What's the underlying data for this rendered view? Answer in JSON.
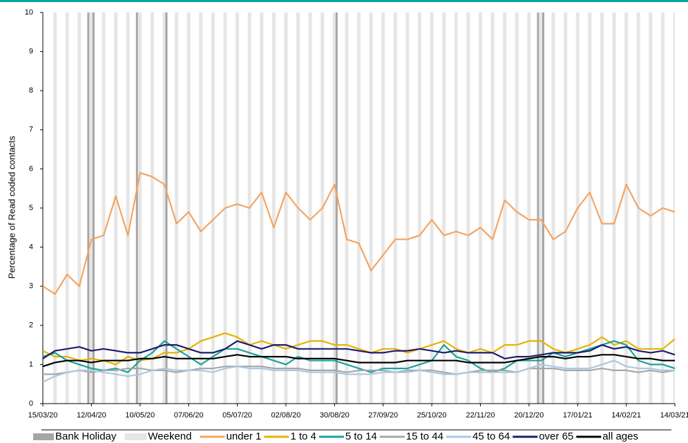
{
  "chart_data": {
    "type": "line",
    "y_label": "Percentage of Read coded contacts",
    "x": [
      "2020-03-15",
      "2020-03-22",
      "2020-03-29",
      "2020-04-05",
      "2020-04-12",
      "2020-04-19",
      "2020-04-26",
      "2020-05-03",
      "2020-05-10",
      "2020-05-17",
      "2020-05-24",
      "2020-05-31",
      "2020-06-07",
      "2020-06-14",
      "2020-06-21",
      "2020-06-28",
      "2020-07-05",
      "2020-07-12",
      "2020-07-19",
      "2020-07-26",
      "2020-08-02",
      "2020-08-09",
      "2020-08-16",
      "2020-08-23",
      "2020-08-30",
      "2020-09-06",
      "2020-09-13",
      "2020-09-20",
      "2020-09-27",
      "2020-10-04",
      "2020-10-11",
      "2020-10-18",
      "2020-10-25",
      "2020-11-01",
      "2020-11-08",
      "2020-11-15",
      "2020-11-22",
      "2020-11-29",
      "2020-12-06",
      "2020-12-13",
      "2020-12-20",
      "2020-12-27",
      "2021-01-03",
      "2021-01-10",
      "2021-01-17",
      "2021-01-24",
      "2021-01-31",
      "2021-02-07",
      "2021-02-14",
      "2021-02-21",
      "2021-02-28",
      "2021-03-07",
      "2021-03-14"
    ],
    "xlim": [
      "2020-03-15",
      "2021-03-14"
    ],
    "xticks": [
      {
        "value": "2020-03-15",
        "label": "15/03/20"
      },
      {
        "value": "2020-04-12",
        "label": "12/04/20"
      },
      {
        "value": "2020-05-10",
        "label": "10/05/20"
      },
      {
        "value": "2020-06-07",
        "label": "07/06/20"
      },
      {
        "value": "2020-07-05",
        "label": "05/07/20"
      },
      {
        "value": "2020-08-02",
        "label": "02/08/20"
      },
      {
        "value": "2020-08-30",
        "label": "30/08/20"
      },
      {
        "value": "2020-09-27",
        "label": "27/09/20"
      },
      {
        "value": "2020-10-25",
        "label": "25/10/20"
      },
      {
        "value": "2020-11-22",
        "label": "22/11/20"
      },
      {
        "value": "2020-12-20",
        "label": "20/12/20"
      },
      {
        "value": "2021-01-17",
        "label": "17/01/21"
      },
      {
        "value": "2021-02-14",
        "label": "14/02/21"
      },
      {
        "value": "2021-03-14",
        "label": "14/03/21"
      }
    ],
    "ylim": [
      0,
      10
    ],
    "yticks": [
      0,
      1,
      2,
      3,
      4,
      5,
      6,
      7,
      8,
      9,
      10
    ],
    "bank_holidays": {
      "name": "Bank Holiday",
      "color": "#a6a6a6",
      "dates": [
        "2020-04-10",
        "2020-04-13",
        "2020-05-08",
        "2020-05-25",
        "2020-08-31",
        "2020-12-25",
        "2020-12-28"
      ]
    },
    "weekends": {
      "name": "Weekend",
      "color": "#e6e6e6"
    },
    "series": [
      {
        "name": "under 1",
        "color": "#f5a35f",
        "values": [
          3.0,
          2.8,
          3.3,
          3.0,
          4.2,
          4.3,
          5.3,
          4.3,
          5.9,
          5.8,
          5.6,
          4.6,
          4.9,
          4.4,
          4.7,
          5.0,
          5.1,
          5.0,
          5.4,
          4.5,
          5.4,
          5.0,
          4.7,
          5.0,
          5.6,
          4.2,
          4.1,
          3.4,
          3.8,
          4.2,
          4.2,
          4.3,
          4.7,
          4.3,
          4.4,
          4.3,
          4.5,
          4.2,
          5.2,
          4.9,
          4.7,
          4.7,
          4.2,
          4.4,
          5.0,
          5.4,
          4.6,
          4.6,
          5.6,
          5.0,
          4.8,
          5.0,
          4.9
        ]
      },
      {
        "name": "1 to 4",
        "color": "#e8b100",
        "values": [
          1.35,
          1.2,
          1.2,
          1.1,
          1.15,
          1.1,
          1.0,
          1.2,
          1.1,
          1.15,
          1.3,
          1.3,
          1.4,
          1.6,
          1.7,
          1.8,
          1.7,
          1.5,
          1.6,
          1.5,
          1.4,
          1.5,
          1.6,
          1.6,
          1.5,
          1.5,
          1.4,
          1.3,
          1.4,
          1.4,
          1.3,
          1.4,
          1.5,
          1.6,
          1.4,
          1.3,
          1.4,
          1.3,
          1.5,
          1.5,
          1.6,
          1.6,
          1.4,
          1.3,
          1.4,
          1.5,
          1.7,
          1.5,
          1.6,
          1.4,
          1.4,
          1.4,
          1.65
        ]
      },
      {
        "name": "5 to 14",
        "color": "#17a39b",
        "values": [
          1.2,
          1.3,
          1.1,
          1.0,
          0.9,
          0.85,
          0.9,
          0.8,
          1.1,
          1.3,
          1.6,
          1.4,
          1.2,
          1.0,
          1.2,
          1.4,
          1.4,
          1.3,
          1.2,
          1.1,
          1.0,
          1.2,
          1.1,
          1.1,
          1.1,
          1.0,
          0.9,
          0.8,
          0.9,
          0.9,
          0.9,
          1.0,
          1.1,
          1.5,
          1.2,
          1.1,
          0.9,
          0.8,
          0.9,
          1.1,
          1.1,
          1.1,
          1.3,
          1.2,
          1.3,
          1.4,
          1.5,
          1.6,
          1.5,
          1.1,
          1.0,
          1.0,
          0.9
        ]
      },
      {
        "name": "15 to 44",
        "color": "#a6a6a6",
        "values": [
          0.75,
          0.75,
          0.8,
          0.85,
          0.8,
          0.85,
          0.85,
          0.9,
          0.9,
          0.85,
          0.85,
          0.8,
          0.85,
          0.9,
          0.9,
          0.95,
          0.95,
          0.95,
          0.95,
          0.9,
          0.9,
          0.9,
          0.85,
          0.85,
          0.85,
          0.8,
          0.85,
          0.85,
          0.85,
          0.8,
          0.85,
          0.85,
          0.85,
          0.8,
          0.75,
          0.8,
          0.85,
          0.85,
          0.85,
          0.8,
          0.9,
          0.9,
          0.9,
          0.85,
          0.85,
          0.85,
          0.9,
          0.85,
          0.85,
          0.8,
          0.85,
          0.8,
          0.85
        ]
      },
      {
        "name": "45 to 64",
        "color": "#a9c8e3",
        "values": [
          0.55,
          0.7,
          0.8,
          0.85,
          0.85,
          0.8,
          0.75,
          0.7,
          0.75,
          0.85,
          0.9,
          0.85,
          0.85,
          0.85,
          0.8,
          0.9,
          0.95,
          0.9,
          0.9,
          0.85,
          0.85,
          0.85,
          0.8,
          0.8,
          0.8,
          0.75,
          0.75,
          0.75,
          0.8,
          0.8,
          0.8,
          0.85,
          0.8,
          0.75,
          0.75,
          0.8,
          0.8,
          0.8,
          0.8,
          0.8,
          0.9,
          1.0,
          0.95,
          0.9,
          0.9,
          0.9,
          1.0,
          1.1,
          0.95,
          0.9,
          0.9,
          0.85,
          0.85
        ]
      },
      {
        "name": "over 65",
        "color": "#1c1c6b",
        "values": [
          1.15,
          1.35,
          1.4,
          1.45,
          1.35,
          1.4,
          1.35,
          1.3,
          1.3,
          1.4,
          1.5,
          1.5,
          1.4,
          1.3,
          1.3,
          1.4,
          1.6,
          1.5,
          1.4,
          1.5,
          1.5,
          1.4,
          1.4,
          1.4,
          1.4,
          1.4,
          1.35,
          1.3,
          1.3,
          1.35,
          1.35,
          1.4,
          1.35,
          1.3,
          1.35,
          1.3,
          1.3,
          1.3,
          1.15,
          1.2,
          1.2,
          1.25,
          1.3,
          1.3,
          1.3,
          1.35,
          1.5,
          1.4,
          1.45,
          1.35,
          1.3,
          1.35,
          1.25
        ]
      },
      {
        "name": "all ages",
        "color": "#000000",
        "values": [
          0.95,
          1.05,
          1.1,
          1.1,
          1.05,
          1.1,
          1.1,
          1.1,
          1.15,
          1.15,
          1.2,
          1.15,
          1.15,
          1.15,
          1.15,
          1.2,
          1.25,
          1.2,
          1.2,
          1.2,
          1.2,
          1.15,
          1.15,
          1.15,
          1.15,
          1.1,
          1.05,
          1.05,
          1.05,
          1.05,
          1.1,
          1.1,
          1.1,
          1.1,
          1.1,
          1.05,
          1.05,
          1.05,
          1.05,
          1.1,
          1.15,
          1.2,
          1.2,
          1.15,
          1.2,
          1.2,
          1.25,
          1.25,
          1.2,
          1.15,
          1.15,
          1.1,
          1.1
        ]
      }
    ]
  }
}
